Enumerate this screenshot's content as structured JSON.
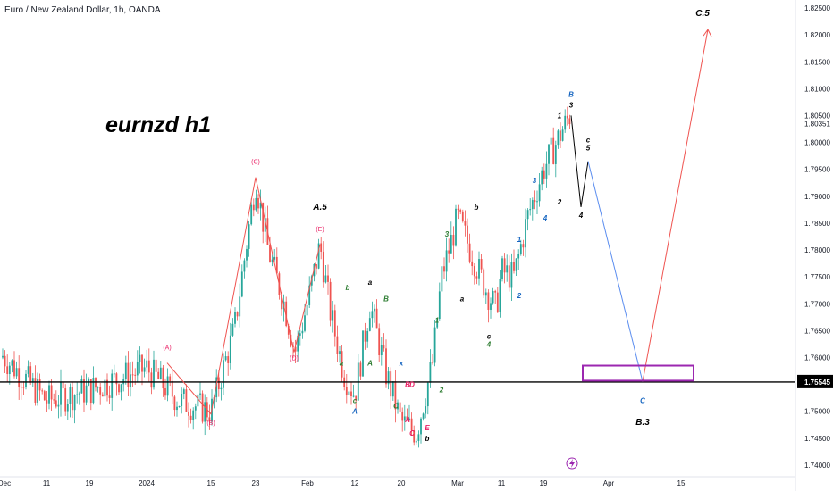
{
  "header": {
    "symbol_title": "Euro / New Zealand Dollar, 1h, OANDA"
  },
  "annotation_title": "eurnzd h1",
  "colors": {
    "up": "#26a69a",
    "down": "#ef5350",
    "projection_down": "#5b8def",
    "projection_up": "#ef5350",
    "target_box": "#9c27b0",
    "support_line": "#000000",
    "wave_blue": "#1565c0",
    "wave_green": "#2e7d32",
    "wave_pink": "#e91e63"
  },
  "chart_data": {
    "type": "candlestick",
    "symbol": "Euro / New Zealand Dollar",
    "timeframe": "1h",
    "source": "OANDA",
    "ylim": [
      1.7375,
      1.8265
    ],
    "y_ticks": [
      "1.82500",
      "1.82000",
      "1.81500",
      "1.81000",
      "1.80500",
      "1.80351",
      "1.80000",
      "1.79500",
      "1.79000",
      "1.78500",
      "1.78000",
      "1.77500",
      "1.77000",
      "1.76500",
      "1.76000",
      "1.75545",
      "1.75000",
      "1.74500",
      "1.74000"
    ],
    "x_ticks": [
      "Dec",
      "11",
      "19",
      "2024",
      "15",
      "23",
      "Feb",
      "12",
      "20",
      "Mar",
      "11",
      "19",
      "Apr",
      "15"
    ],
    "price_path": [
      {
        "t": "Dec",
        "p": 1.76
      },
      {
        "t": "11",
        "p": 1.752
      },
      {
        "t": "19",
        "p": 1.754
      },
      {
        "t": "2024",
        "p": 1.758
      },
      {
        "t": "2024+",
        "p": 1.752
      },
      {
        "t": "15",
        "p": 1.75
      },
      {
        "t": "19",
        "p": 1.765
      },
      {
        "t": "23",
        "p": 1.793
      },
      {
        "t": "23+",
        "p": 1.78
      },
      {
        "t": "27",
        "p": 1.77
      },
      {
        "t": "30",
        "p": 1.761
      },
      {
        "t": "Feb",
        "p": 1.77
      },
      {
        "t": "Feb+",
        "p": 1.781
      },
      {
        "t": "6",
        "p": 1.768
      },
      {
        "t": "9",
        "p": 1.757
      },
      {
        "t": "12",
        "p": 1.753
      },
      {
        "t": "14",
        "p": 1.77
      },
      {
        "t": "16",
        "p": 1.757
      },
      {
        "t": "20",
        "p": 1.748
      },
      {
        "t": "22",
        "p": 1.746
      },
      {
        "t": "23",
        "p": 1.759
      },
      {
        "t": "26",
        "p": 1.775
      },
      {
        "t": "Mar",
        "p": 1.786
      },
      {
        "t": "5",
        "p": 1.773
      },
      {
        "t": "8",
        "p": 1.769
      },
      {
        "t": "11",
        "p": 1.776
      },
      {
        "t": "13",
        "p": 1.775
      },
      {
        "t": "15",
        "p": 1.786
      },
      {
        "t": "19",
        "p": 1.795
      },
      {
        "t": "21",
        "p": 1.805
      }
    ],
    "last_price": "1.75545",
    "current_price": "1.80351",
    "support_level": 1.75545,
    "corrective_zigzag": [
      [
        "Jan 5",
        1.759
      ],
      [
        "Jan 15",
        1.7495
      ],
      [
        "Jan 23",
        1.7935
      ],
      [
        "Feb 1",
        1.761
      ],
      [
        "Feb 6",
        1.781
      ]
    ],
    "projection": {
      "labels": [
        "c",
        "C",
        "C.5"
      ],
      "path": [
        [
          "Mar 22",
          1.805
        ],
        [
          "Mar 24",
          1.788
        ],
        [
          "Mar 25",
          1.7965
        ],
        [
          "Apr 8",
          1.7555
        ],
        [
          "Apr 15",
          1.821
        ]
      ]
    },
    "target_zone": {
      "x_from": "Mar 26",
      "x_to": "Apr 12",
      "y_from": 1.7585,
      "y_to": 1.7557
    },
    "wave_labels": [
      {
        "text": "(A)",
        "t": "Jan 5",
        "p": 1.7615,
        "color": "pink"
      },
      {
        "text": "(B)",
        "t": "Jan 15",
        "p": 1.7475,
        "color": "pink"
      },
      {
        "text": "(C)",
        "t": "Jan 23",
        "p": 1.796,
        "color": "pink"
      },
      {
        "text": "(D)",
        "t": "Feb 1",
        "p": 1.7595,
        "color": "pink"
      },
      {
        "text": "(E)",
        "t": "Feb 6",
        "p": 1.7835,
        "color": "pink"
      },
      {
        "text": "A.5",
        "t": "Feb 6",
        "p": 1.7875,
        "color": "black"
      },
      {
        "text": "a",
        "t": "Feb 10",
        "p": 1.7585,
        "color": "green"
      },
      {
        "text": "b",
        "t": "Feb 11",
        "p": 1.7725,
        "color": "green"
      },
      {
        "text": "c",
        "t": "Feb 12",
        "p": 1.7515,
        "color": "green"
      },
      {
        "text": "A",
        "t": "Feb 12",
        "p": 1.7495,
        "color": "blue"
      },
      {
        "text": "a",
        "t": "Feb 14",
        "p": 1.7735,
        "color": "black"
      },
      {
        "text": "B",
        "t": "Feb 16",
        "p": 1.7705,
        "color": "green"
      },
      {
        "text": "A",
        "t": "Feb 14",
        "p": 1.7585,
        "color": "green"
      },
      {
        "text": "C",
        "t": "Feb 19",
        "p": 1.7505,
        "color": "green"
      },
      {
        "text": "x",
        "t": "Feb 20",
        "p": 1.7585,
        "color": "blue"
      },
      {
        "text": "B",
        "t": "Feb 21",
        "p": 1.7545,
        "color": "pink"
      },
      {
        "text": "D",
        "t": "Feb 22",
        "p": 1.7545,
        "color": "pink"
      },
      {
        "text": "A",
        "t": "Feb 21",
        "p": 1.748,
        "color": "pink"
      },
      {
        "text": "C",
        "t": "Feb 22",
        "p": 1.7455,
        "color": "pink"
      },
      {
        "text": "E",
        "t": "Feb 25",
        "p": 1.7465,
        "color": "pink"
      },
      {
        "text": "b",
        "t": "Feb 25",
        "p": 1.7445,
        "color": "black"
      },
      {
        "text": "1",
        "t": "Feb 27",
        "p": 1.7665,
        "color": "green"
      },
      {
        "text": "2",
        "t": "Feb 28",
        "p": 1.7535,
        "color": "green"
      },
      {
        "text": "3",
        "t": "Feb 29",
        "p": 1.7825,
        "color": "green"
      },
      {
        "text": "a",
        "t": "Mar 1",
        "p": 1.7705,
        "color": "black"
      },
      {
        "text": "b",
        "t": "Mar 4",
        "p": 1.7875,
        "color": "black"
      },
      {
        "text": "c",
        "t": "Mar 7",
        "p": 1.7635,
        "color": "black"
      },
      {
        "text": "4",
        "t": "Mar 7",
        "p": 1.762,
        "color": "green"
      },
      {
        "text": "1",
        "t": "Mar 14",
        "p": 1.7815,
        "color": "blue"
      },
      {
        "text": "2",
        "t": "Mar 14",
        "p": 1.771,
        "color": "blue"
      },
      {
        "text": "3",
        "t": "Mar 16",
        "p": 1.7925,
        "color": "blue"
      },
      {
        "text": "4",
        "t": "Mar 17",
        "p": 1.7855,
        "color": "blue"
      },
      {
        "text": "1",
        "t": "Mar 20",
        "p": 1.8045,
        "color": "black"
      },
      {
        "text": "2",
        "t": "Mar 20",
        "p": 1.7885,
        "color": "black"
      },
      {
        "text": "3",
        "t": "Mar 22",
        "p": 1.8065,
        "color": "black"
      },
      {
        "text": "B",
        "t": "Mar 22",
        "p": 1.8085,
        "color": "blue"
      },
      {
        "text": "4",
        "t": "Mar 24",
        "p": 1.786,
        "color": "black"
      },
      {
        "text": "5",
        "t": "Mar 25",
        "p": 1.7985,
        "color": "black"
      },
      {
        "text": "c",
        "t": "Mar 25",
        "p": 1.8,
        "color": "black"
      },
      {
        "text": "C",
        "t": "Apr 8",
        "p": 1.7515,
        "color": "blue"
      },
      {
        "text": "B.3",
        "t": "Apr 8",
        "p": 1.7475,
        "color": "black"
      },
      {
        "text": "C.5",
        "t": "Apr 14",
        "p": 1.8235,
        "color": "black"
      }
    ]
  }
}
